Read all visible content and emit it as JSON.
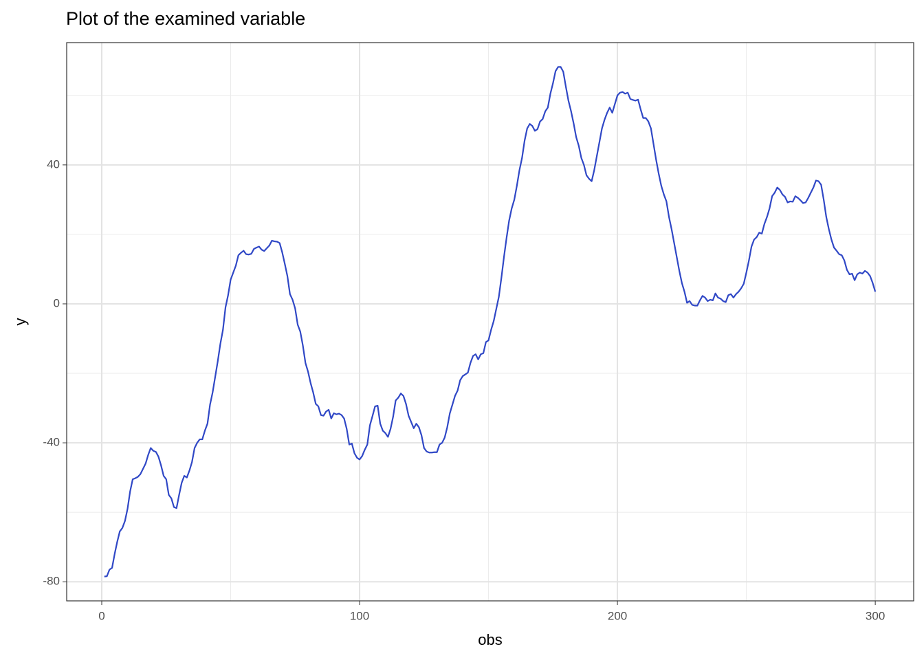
{
  "chart_data": {
    "type": "line",
    "title": "Plot of the examined variable",
    "x_label": "obs",
    "y_label": "y",
    "color": "#3048c6",
    "grid": true,
    "xlim": [
      -13.6,
      314.9
    ],
    "ylim": [
      -85.5,
      75.2
    ],
    "xticks": [
      0,
      100,
      200,
      300
    ],
    "yticks": [
      -80,
      -40,
      0,
      40
    ],
    "minor_xticks": [
      50,
      150,
      250
    ],
    "minor_yticks": [
      -60,
      -20,
      20,
      60
    ],
    "x": [
      1,
      2,
      3,
      4,
      5,
      6,
      7,
      8,
      9,
      10,
      11,
      12,
      13,
      14,
      15,
      16,
      17,
      18,
      19,
      20,
      21,
      22,
      23,
      24,
      25,
      26,
      27,
      28,
      29,
      30,
      31,
      32,
      33,
      34,
      35,
      36,
      37,
      38,
      39,
      40,
      41,
      42,
      43,
      44,
      45,
      46,
      47,
      48,
      49,
      50,
      51,
      52,
      53,
      54,
      55,
      56,
      57,
      58,
      59,
      60,
      61,
      62,
      63,
      64,
      65,
      66,
      67,
      68,
      69,
      70,
      71,
      72,
      73,
      74,
      75,
      76,
      77,
      78,
      79,
      80,
      81,
      82,
      83,
      84,
      85,
      86,
      87,
      88,
      89,
      90,
      91,
      92,
      93,
      94,
      95,
      96,
      97,
      98,
      99,
      100,
      101,
      102,
      103,
      104,
      105,
      106,
      107,
      108,
      109,
      110,
      111,
      112,
      113,
      114,
      115,
      116,
      117,
      118,
      119,
      120,
      121,
      122,
      123,
      124,
      125,
      126,
      127,
      128,
      129,
      130,
      131,
      132,
      133,
      134,
      135,
      136,
      137,
      138,
      139,
      140,
      141,
      142,
      143,
      144,
      145,
      146,
      147,
      148,
      149,
      150,
      151,
      152,
      153,
      154,
      155,
      156,
      157,
      158,
      159,
      160,
      161,
      162,
      163,
      164,
      165,
      166,
      167,
      168,
      169,
      170,
      171,
      172,
      173,
      174,
      175,
      176,
      177,
      178,
      179,
      180,
      181,
      182,
      183,
      184,
      185,
      186,
      187,
      188,
      189,
      190,
      191,
      192,
      193,
      194,
      195,
      196,
      197,
      198,
      199,
      200,
      201,
      202,
      203,
      204,
      205,
      206,
      207,
      208,
      209,
      210,
      211,
      212,
      213,
      214,
      215,
      216,
      217,
      218,
      219,
      220,
      221,
      222,
      223,
      224,
      225,
      226,
      227,
      228,
      229,
      230,
      231,
      232,
      233,
      234,
      235,
      236,
      237,
      238,
      239,
      240,
      241,
      242,
      243,
      244,
      245,
      246,
      247,
      248,
      249,
      250,
      251,
      252,
      253,
      254,
      255,
      256,
      257,
      258,
      259,
      260,
      261,
      262,
      263,
      264,
      265,
      266,
      267,
      268,
      269,
      270,
      271,
      272,
      273,
      274,
      275,
      276,
      277,
      278,
      279,
      280,
      281,
      282,
      283,
      284,
      285,
      286,
      287,
      288,
      289,
      290,
      291,
      292,
      293,
      294,
      295,
      296,
      297,
      298,
      299,
      300
    ],
    "values": [
      -78.5,
      -78.4,
      -76.5,
      -76,
      -72,
      -68.5,
      -65.5,
      -64.5,
      -62.5,
      -59,
      -54,
      -50.5,
      -50.2,
      -49.8,
      -49,
      -47.5,
      -46,
      -43.5,
      -41.5,
      -42.3,
      -42.6,
      -44,
      -46.5,
      -49.5,
      -50.5,
      -55,
      -56,
      -58.5,
      -58.8,
      -55,
      -51.5,
      -49.5,
      -50,
      -48,
      -45.5,
      -41.5,
      -40,
      -39,
      -39,
      -36.5,
      -34.5,
      -29,
      -25.5,
      -21,
      -16.5,
      -11.5,
      -7.5,
      -1,
      2.5,
      7,
      9,
      11,
      14,
      14.7,
      15.3,
      14.3,
      14.2,
      14.4,
      15.8,
      16.2,
      16.5,
      15.6,
      15.2,
      16,
      16.8,
      18.2,
      18,
      17.9,
      17.5,
      14.8,
      11.5,
      8,
      2.8,
      1.2,
      -1.3,
      -6,
      -8,
      -12,
      -17,
      -19.5,
      -22.8,
      -25.5,
      -28.8,
      -29.5,
      -32,
      -32.2,
      -31,
      -30.5,
      -33,
      -31.5,
      -31.8,
      -31.6,
      -32,
      -33,
      -36,
      -40.5,
      -40.2,
      -43,
      -44.3,
      -44.8,
      -43.8,
      -42,
      -40.5,
      -35,
      -32.3,
      -29.5,
      -29.3,
      -34.5,
      -36.5,
      -37.2,
      -38.3,
      -36,
      -32.5,
      -27.8,
      -27,
      -25.8,
      -26.5,
      -28.8,
      -32.2,
      -34,
      -35.8,
      -34.5,
      -35.5,
      -37.8,
      -41.5,
      -42.5,
      -42.8,
      -42.8,
      -42.7,
      -42.7,
      -40.5,
      -40,
      -38.5,
      -35.5,
      -31.5,
      -29,
      -26.5,
      -25,
      -22,
      -20.8,
      -20.3,
      -19.8,
      -17,
      -15,
      -14.5,
      -16,
      -14.5,
      -14.2,
      -11,
      -10.5,
      -7.5,
      -5,
      -1.5,
      2,
      7.5,
      13.5,
      19,
      24,
      27.5,
      30,
      34,
      38.5,
      42,
      47,
      50.5,
      51.8,
      51.2,
      49.8,
      50.3,
      52.5,
      53.2,
      55.4,
      56.5,
      60.5,
      63.5,
      67,
      68.2,
      68.2,
      66.8,
      62.5,
      58.5,
      55.5,
      52,
      48,
      45.5,
      42,
      40,
      37,
      36,
      35.3,
      38.5,
      42.5,
      46.5,
      50.5,
      53,
      55,
      56.5,
      55,
      57.5,
      60,
      60.8,
      61,
      60.5,
      60.8,
      59,
      58.7,
      58.5,
      58.8,
      56,
      53.5,
      53.5,
      52.5,
      50.5,
      46,
      41.5,
      37.5,
      34,
      31.5,
      29.5,
      25,
      21.5,
      17.5,
      13.5,
      9.5,
      6,
      3.5,
      0.3,
      0.8,
      -0.3,
      -0.5,
      -0.5,
      1,
      2.3,
      1.8,
      0.8,
      1.2,
      1,
      3,
      1.8,
      1.5,
      0.8,
      0.5,
      2.5,
      2.8,
      1.8,
      2.8,
      3.5,
      4.5,
      5.8,
      9,
      12.5,
      16.5,
      18.5,
      19.2,
      20.5,
      20.2,
      23,
      25,
      27.5,
      31,
      32,
      33.5,
      32.8,
      31.5,
      30.8,
      29.2,
      29.5,
      29.4,
      31,
      30.5,
      29.8,
      29,
      29.2,
      30.5,
      32,
      33.5,
      35.5,
      35.3,
      34.3,
      30,
      25,
      21.5,
      18.5,
      16.2,
      15.3,
      14.3,
      14,
      12.5,
      9.8,
      8.5,
      8.7,
      6.8,
      8.5,
      9,
      8.7,
      9.5,
      9,
      8,
      6,
      3.5
    ]
  }
}
